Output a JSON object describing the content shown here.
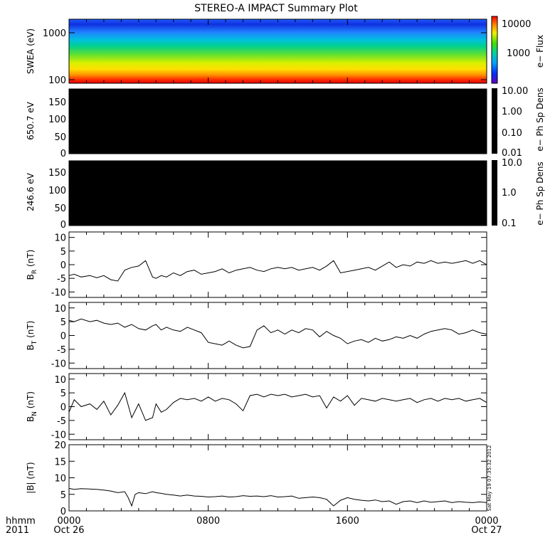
{
  "title": "STEREO-A IMPACT Summary Plot",
  "timestamp_text": "Sat May 19 07:35:32 2012",
  "x_axis": {
    "row1_label": "hhmm",
    "row2_label": "2011",
    "ticks": [
      {
        "hours": 0,
        "label": "0000",
        "sublabel": "Oct 26"
      },
      {
        "hours": 8,
        "label": "0800",
        "sublabel": ""
      },
      {
        "hours": 16,
        "label": "1600",
        "sublabel": ""
      },
      {
        "hours": 24,
        "label": "0000",
        "sublabel": "Oct 27"
      }
    ],
    "range_hours": [
      0,
      24
    ]
  },
  "colorbars": [
    {
      "label": "e−  Flux",
      "ticks": [
        "10000",
        "1000"
      ],
      "scale": "rainbow"
    },
    {
      "label": "e−  Ph Sp Dens",
      "ticks": [
        "10.00",
        "1.00",
        "0.10",
        "0.01"
      ],
      "scale": "black"
    },
    {
      "label": "e−  Ph Sp Dens",
      "ticks": [
        "10.0",
        "1.0",
        "0.1"
      ],
      "scale": "black"
    }
  ],
  "chart_data": [
    {
      "type": "heatmap",
      "ylabel": "SWEA (eV)",
      "y_scale": "log",
      "yticks": [
        "1000",
        "100"
      ],
      "ylim": [
        95,
        2000
      ],
      "description_values": "low-energy flux highest near 100 eV, decreasing with energy"
    },
    {
      "type": "heatmap",
      "ylabel": "650.7 eV",
      "yticks": [
        "150",
        "100",
        "50",
        "0"
      ],
      "ylim": [
        0,
        180
      ],
      "values": "all zero / black"
    },
    {
      "type": "heatmap",
      "ylabel": "246.6 eV",
      "yticks": [
        "150",
        "100",
        "50",
        "0"
      ],
      "ylim": [
        0,
        180
      ],
      "values": "all zero / black"
    },
    {
      "type": "line",
      "ylabel": "B",
      "ylabel_sub": "R",
      "ylabel_unit": "(nT)",
      "ylim": [
        -12,
        12
      ],
      "yticks": [
        "10",
        "5",
        "0",
        "-5",
        "-10"
      ],
      "x_hours": [
        0,
        0.3,
        0.7,
        1.2,
        1.6,
        2.0,
        2.4,
        2.8,
        3.2,
        3.6,
        4.0,
        4.4,
        4.8,
        5.0,
        5.3,
        5.6,
        6.0,
        6.4,
        6.8,
        7.2,
        7.6,
        8.0,
        8.4,
        8.8,
        9.2,
        9.6,
        10.0,
        10.4,
        10.8,
        11.2,
        11.6,
        12.0,
        12.4,
        12.8,
        13.2,
        13.6,
        14.0,
        14.4,
        14.8,
        15.2,
        15.6,
        16.0,
        16.4,
        16.8,
        17.2,
        17.6,
        18.0,
        18.4,
        18.8,
        19.2,
        19.6,
        20.0,
        20.4,
        20.8,
        21.2,
        21.6,
        22.0,
        22.4,
        22.8,
        23.2,
        23.6,
        24.0
      ],
      "values": [
        -4,
        -3.5,
        -4.5,
        -4,
        -4.8,
        -4,
        -5.5,
        -6,
        -2,
        -1,
        -0.5,
        1.5,
        -4.5,
        -5,
        -4,
        -4.5,
        -3,
        -4,
        -2.5,
        -2,
        -3.5,
        -3,
        -2.5,
        -1.5,
        -3,
        -2,
        -1.5,
        -1,
        -2,
        -2.5,
        -1.5,
        -1,
        -1.5,
        -1,
        -2,
        -1.5,
        -1,
        -2,
        -0.5,
        1.5,
        -3,
        -2.5,
        -2,
        -1.5,
        -1,
        -2,
        -0.5,
        1,
        -1,
        0,
        -0.5,
        1,
        0.5,
        1.5,
        0.5,
        1,
        0.5,
        1,
        1.5,
        0.5,
        1.5,
        0
      ]
    },
    {
      "type": "line",
      "ylabel": "B",
      "ylabel_sub": "T",
      "ylabel_unit": "(nT)",
      "ylim": [
        -12,
        12
      ],
      "yticks": [
        "10",
        "5",
        "0",
        "-5",
        "-10"
      ],
      "x_hours": [
        0,
        0.3,
        0.7,
        1.2,
        1.6,
        2.0,
        2.4,
        2.8,
        3.2,
        3.6,
        4.0,
        4.4,
        4.8,
        5.0,
        5.3,
        5.6,
        6.0,
        6.4,
        6.8,
        7.2,
        7.6,
        8.0,
        8.4,
        8.8,
        9.2,
        9.6,
        10.0,
        10.4,
        10.8,
        11.2,
        11.6,
        12.0,
        12.4,
        12.8,
        13.2,
        13.6,
        14.0,
        14.4,
        14.8,
        15.2,
        15.6,
        16.0,
        16.4,
        16.8,
        17.2,
        17.6,
        18.0,
        18.4,
        18.8,
        19.2,
        19.6,
        20.0,
        20.4,
        20.8,
        21.2,
        21.6,
        22.0,
        22.4,
        22.8,
        23.2,
        23.6,
        24.0
      ],
      "values": [
        5.5,
        5,
        6,
        5,
        5.5,
        4.5,
        4,
        4.5,
        3,
        4,
        2.5,
        2,
        3.5,
        4,
        2,
        3,
        2,
        1.5,
        3,
        2,
        1,
        -2.5,
        -3,
        -3.5,
        -2,
        -3.5,
        -4.5,
        -4,
        2,
        3.5,
        1,
        2,
        0.5,
        2,
        1,
        2.5,
        2,
        -0.5,
        1.5,
        0,
        -1,
        -3,
        -2,
        -1.5,
        -2.5,
        -1,
        -2,
        -1.5,
        -0.5,
        -1,
        0,
        -1,
        0.5,
        1.5,
        2,
        2.5,
        2,
        0.5,
        1,
        2,
        1,
        0.5
      ]
    },
    {
      "type": "line",
      "ylabel": "B",
      "ylabel_sub": "N",
      "ylabel_unit": "(nT)",
      "ylim": [
        -12,
        12
      ],
      "yticks": [
        "10",
        "5",
        "0",
        "-5",
        "-10"
      ],
      "x_hours": [
        0,
        0.3,
        0.7,
        1.2,
        1.6,
        2.0,
        2.4,
        2.8,
        3.2,
        3.6,
        4.0,
        4.4,
        4.8,
        5.0,
        5.3,
        5.6,
        6.0,
        6.4,
        6.8,
        7.2,
        7.6,
        8.0,
        8.4,
        8.8,
        9.2,
        9.6,
        10.0,
        10.4,
        10.8,
        11.2,
        11.6,
        12.0,
        12.4,
        12.8,
        13.2,
        13.6,
        14.0,
        14.4,
        14.8,
        15.2,
        15.6,
        16.0,
        16.4,
        16.8,
        17.2,
        17.6,
        18.0,
        18.4,
        18.8,
        19.2,
        19.6,
        20.0,
        20.4,
        20.8,
        21.2,
        21.6,
        22.0,
        22.4,
        22.8,
        23.2,
        23.6,
        24.0
      ],
      "values": [
        -2,
        2.5,
        0,
        1,
        -1,
        2,
        -3,
        0.5,
        5,
        -4,
        1,
        -5,
        -4,
        1,
        -2,
        -1,
        1.5,
        3,
        2.5,
        3,
        2,
        3.5,
        2,
        3,
        2.5,
        1,
        -1.5,
        4,
        4.5,
        3.5,
        4.5,
        4,
        4.5,
        3.5,
        4,
        4.5,
        3.5,
        4,
        -0.5,
        3.5,
        2,
        4,
        0.5,
        3,
        2.5,
        2,
        3,
        2.5,
        2,
        2.5,
        3,
        1.5,
        2.5,
        3,
        2,
        3,
        2.5,
        3,
        2,
        2.5,
        3,
        1.5
      ]
    },
    {
      "type": "line",
      "ylabel": "|B| (nT)",
      "ylim": [
        0,
        20
      ],
      "yticks": [
        "20",
        "15",
        "10",
        "5",
        "0"
      ],
      "x_hours": [
        0,
        0.3,
        0.7,
        1.2,
        1.6,
        2.0,
        2.4,
        2.8,
        3.2,
        3.4,
        3.6,
        3.8,
        4.0,
        4.4,
        4.8,
        5.0,
        5.3,
        5.6,
        6.0,
        6.4,
        6.8,
        7.2,
        7.6,
        8.0,
        8.4,
        8.8,
        9.2,
        9.6,
        10.0,
        10.4,
        10.8,
        11.2,
        11.6,
        12.0,
        12.4,
        12.8,
        13.2,
        13.6,
        14.0,
        14.4,
        14.8,
        15.2,
        15.6,
        16.0,
        16.4,
        16.8,
        17.2,
        17.6,
        18.0,
        18.4,
        18.8,
        19.2,
        19.6,
        20.0,
        20.4,
        20.8,
        21.2,
        21.6,
        22.0,
        22.4,
        22.8,
        23.2,
        23.6,
        24.0
      ],
      "values": [
        6.8,
        6.5,
        6.7,
        6.6,
        6.5,
        6.3,
        6,
        5.5,
        5.8,
        4,
        1.5,
        5,
        5.5,
        5.2,
        5.8,
        5.5,
        5.3,
        5,
        4.8,
        4.5,
        4.8,
        4.5,
        4.4,
        4.2,
        4.3,
        4.5,
        4.2,
        4.3,
        4.6,
        4.4,
        4.5,
        4.3,
        4.6,
        4.2,
        4.3,
        4.5,
        3.8,
        4,
        4.2,
        4,
        3.5,
        1.5,
        3.2,
        4,
        3.5,
        3.2,
        3,
        3.3,
        2.8,
        3,
        2,
        2.8,
        3,
        2.5,
        3,
        2.6,
        2.8,
        3,
        2.5,
        2.8,
        2.6,
        2.5,
        2.7,
        2.5
      ]
    }
  ]
}
